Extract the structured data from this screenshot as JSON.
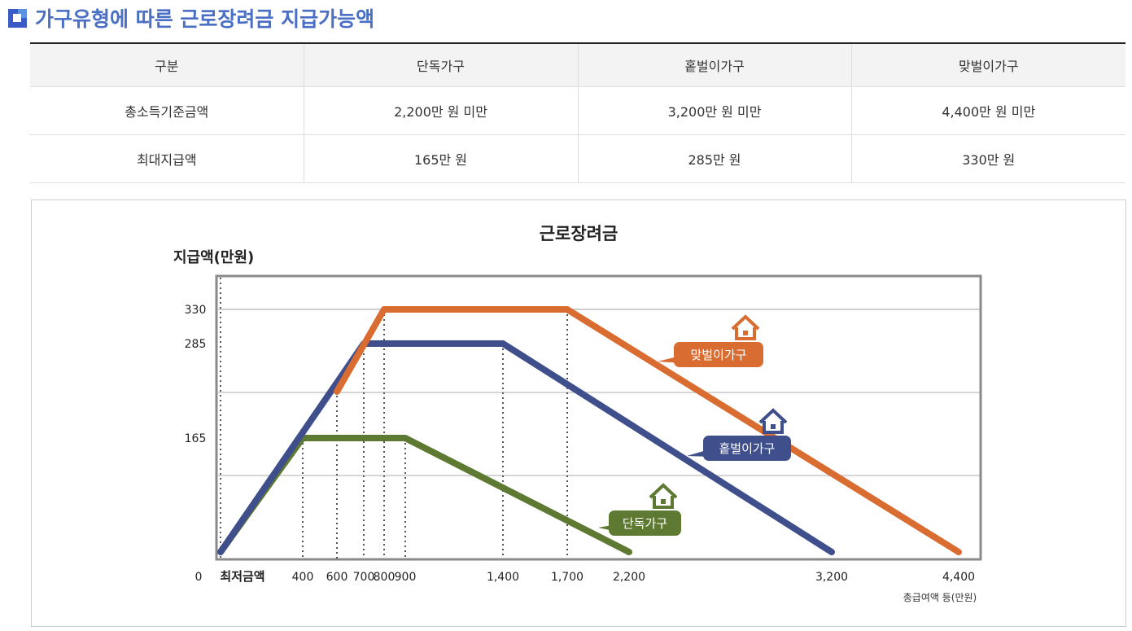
{
  "header": {
    "title": "가구유형에 따른 근로장려금 지급가능액",
    "icon": "square-bullet-icon"
  },
  "table": {
    "headers": [
      "구분",
      "단독가구",
      "홑벌이가구",
      "맞벌이가구"
    ],
    "rows": [
      [
        "총소득기준금액",
        "2,200만 원 미만",
        "3,200만 원 미만",
        "4,400만 원 미만"
      ],
      [
        "최대지급액",
        "165만 원",
        "285만 원",
        "330만 원"
      ]
    ]
  },
  "chart_data": {
    "type": "line",
    "title": "근로장려금",
    "ylabel": "지급액(만원)",
    "xlabel": "총급여액 등(만원)",
    "x_start_label": "최저금액",
    "y_zero_label": "0",
    "x_ticks": [
      "400",
      "600",
      "700",
      "800",
      "900",
      "1,400",
      "1,700",
      "2,200",
      "3,200",
      "4,400"
    ],
    "y_ticks": [
      "330",
      "285",
      "165"
    ],
    "grid": true,
    "series": [
      {
        "name": "단독가구",
        "color": "#5e7a32",
        "points": [
          [
            0,
            0
          ],
          [
            400,
            165
          ],
          [
            900,
            165
          ],
          [
            2200,
            0
          ]
        ]
      },
      {
        "name": "홑벌이가구",
        "color": "#3f4f8c",
        "points": [
          [
            0,
            0
          ],
          [
            700,
            285
          ],
          [
            1400,
            285
          ],
          [
            3200,
            0
          ]
        ]
      },
      {
        "name": "맞벌이가구",
        "color": "#d96c31",
        "points": [
          [
            600,
            224
          ],
          [
            800,
            330
          ],
          [
            1700,
            330
          ],
          [
            4400,
            0
          ]
        ]
      }
    ]
  }
}
